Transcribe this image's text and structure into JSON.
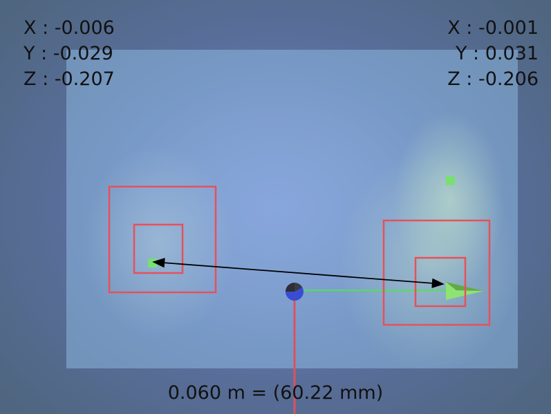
{
  "left_point": {
    "x_label": "X",
    "x_value": "-0.006",
    "y_label": "Y",
    "y_value": "-0.029",
    "z_label": "Z",
    "z_value": "-0.207"
  },
  "right_point": {
    "x_label": "X",
    "x_value": "-0.001",
    "y_label": "Y",
    "y_value": "0.031",
    "z_label": "Z",
    "z_value": "-0.206"
  },
  "distance": {
    "meters": "0.060",
    "meters_unit": "m",
    "millimeters": "60.22",
    "millimeters_unit": "mm"
  },
  "colors": {
    "selection_box": "#e8505a",
    "marker": "#78e070",
    "x_axis": "#4ee34e",
    "y_axis": "#e05060",
    "origin": "#3a4cd0",
    "measure_line": "#000000"
  }
}
